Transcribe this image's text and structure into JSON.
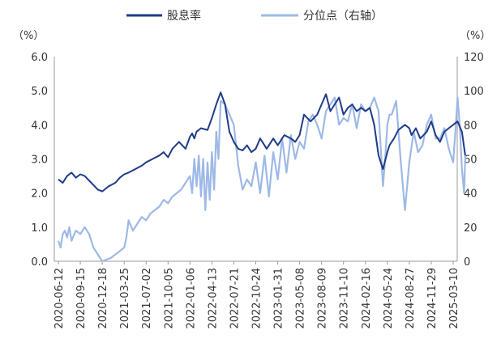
{
  "chart_data": {
    "type": "line",
    "left_unit": "（%）",
    "right_unit": "（%）",
    "y_left": {
      "min": 0,
      "max": 6,
      "ticks": [
        "0.0",
        "1.0",
        "2.0",
        "3.0",
        "4.0",
        "5.0",
        "6.0"
      ]
    },
    "y_right": {
      "min": 0,
      "max": 120,
      "ticks": [
        "0",
        "20",
        "40",
        "60",
        "80",
        "100",
        "120"
      ]
    },
    "x_tick_labels": [
      "2020-06-12",
      "2020-09-15",
      "2020-12-18",
      "2021-03-25",
      "2021-07-02",
      "2021-10-05",
      "2022-01-06",
      "2022-04-13",
      "2022-07-21",
      "2022-10-24",
      "2023-01-31",
      "2023-05-08",
      "2023-08-09",
      "2023-11-10",
      "2024-02-16",
      "2024-05-24",
      "2024-08-27",
      "2024-11-29",
      "2025-03-10"
    ],
    "legend": [
      "股息率",
      "分位点（右轴）"
    ],
    "colors": {
      "dividend": "#1f3c88",
      "percentile": "#9db9e6"
    },
    "series": [
      {
        "name": "股息率",
        "axis": "left",
        "x": [
          0,
          0.2,
          0.4,
          0.6,
          0.8,
          1,
          1.2,
          1.5,
          1.8,
          2,
          2.3,
          2.6,
          2.8,
          3,
          3.2,
          3.5,
          3.8,
          4,
          4.3,
          4.6,
          4.8,
          5,
          5.2,
          5.5,
          5.8,
          6,
          6.1,
          6.2,
          6.3,
          6.5,
          6.8,
          7,
          7.2,
          7.4,
          7.6,
          7.8,
          8,
          8.2,
          8.4,
          8.6,
          8.8,
          9,
          9.2,
          9.5,
          9.8,
          10,
          10.3,
          10.6,
          10.8,
          11,
          11.2,
          11.5,
          11.8,
          12,
          12.2,
          12.4,
          12.6,
          12.8,
          13,
          13.2,
          13.4,
          13.6,
          13.8,
          14,
          14.2,
          14.4,
          14.6,
          14.8,
          15,
          15.1,
          15.3,
          15.5,
          15.8,
          16,
          16.1,
          16.3,
          16.5,
          16.8,
          17,
          17.2,
          17.4,
          17.6,
          17.8,
          18,
          18.2,
          18.4,
          18.55
        ],
        "y": [
          2.4,
          2.3,
          2.5,
          2.6,
          2.45,
          2.55,
          2.5,
          2.3,
          2.1,
          2.05,
          2.2,
          2.3,
          2.45,
          2.55,
          2.6,
          2.7,
          2.8,
          2.9,
          3.0,
          3.1,
          3.2,
          3.05,
          3.3,
          3.5,
          3.3,
          3.65,
          3.75,
          3.6,
          3.8,
          3.9,
          3.85,
          4.2,
          4.6,
          4.95,
          4.6,
          3.8,
          3.5,
          3.3,
          3.25,
          3.4,
          3.2,
          3.3,
          3.6,
          3.3,
          3.6,
          3.4,
          3.7,
          3.6,
          3.5,
          3.7,
          4.3,
          4.1,
          4.3,
          4.6,
          4.9,
          4.4,
          4.6,
          4.8,
          4.3,
          4.5,
          4.6,
          4.4,
          4.5,
          4.4,
          4.5,
          4.0,
          3.1,
          2.7,
          3.2,
          3.4,
          3.6,
          3.85,
          4.0,
          3.9,
          3.7,
          3.9,
          3.6,
          3.8,
          4.1,
          3.7,
          3.5,
          3.8,
          3.9,
          4.0,
          4.1,
          3.8,
          3.1
        ]
      },
      {
        "name": "分位点（右轴）",
        "axis": "right",
        "x": [
          0,
          0.1,
          0.2,
          0.3,
          0.4,
          0.5,
          0.6,
          0.8,
          1,
          1.2,
          1.4,
          1.6,
          1.8,
          2,
          2.2,
          2.4,
          2.6,
          2.8,
          3,
          3.1,
          3.2,
          3.4,
          3.6,
          3.8,
          4,
          4.2,
          4.4,
          4.6,
          4.8,
          5,
          5.2,
          5.4,
          5.6,
          5.8,
          6,
          6.1,
          6.2,
          6.3,
          6.4,
          6.5,
          6.6,
          6.7,
          6.8,
          6.9,
          7,
          7.1,
          7.2,
          7.3,
          7.4,
          7.6,
          7.8,
          8,
          8.2,
          8.4,
          8.6,
          8.8,
          9,
          9.2,
          9.4,
          9.6,
          9.8,
          10,
          10.2,
          10.4,
          10.6,
          10.8,
          11,
          11.2,
          11.4,
          11.6,
          11.8,
          12,
          12.2,
          12.4,
          12.6,
          12.8,
          13,
          13.2,
          13.4,
          13.6,
          13.8,
          14,
          14.2,
          14.4,
          14.6,
          14.8,
          14.9,
          15,
          15.1,
          15.2,
          15.4,
          15.6,
          15.8,
          16,
          16.2,
          16.4,
          16.6,
          16.8,
          17,
          17.2,
          17.4,
          17.6,
          17.8,
          18,
          18.1,
          18.2,
          18.3,
          18.4,
          18.5,
          18.55
        ],
        "y": [
          12,
          8,
          16,
          18,
          14,
          20,
          12,
          18,
          16,
          20,
          16,
          8,
          4,
          0,
          1,
          2,
          4,
          6,
          8,
          14,
          24,
          18,
          22,
          26,
          24,
          28,
          30,
          32,
          36,
          34,
          38,
          40,
          42,
          46,
          50,
          40,
          60,
          44,
          62,
          38,
          60,
          30,
          58,
          36,
          64,
          42,
          76,
          60,
          94,
          92,
          86,
          80,
          56,
          42,
          48,
          44,
          58,
          40,
          62,
          38,
          64,
          48,
          72,
          52,
          74,
          60,
          70,
          66,
          82,
          86,
          80,
          72,
          88,
          92,
          96,
          80,
          84,
          82,
          92,
          78,
          92,
          88,
          90,
          96,
          88,
          44,
          60,
          80,
          86,
          86,
          94,
          60,
          30,
          58,
          76,
          64,
          68,
          80,
          86,
          72,
          72,
          78,
          66,
          58,
          76,
          96,
          80,
          54,
          40,
          62
        ]
      }
    ]
  }
}
